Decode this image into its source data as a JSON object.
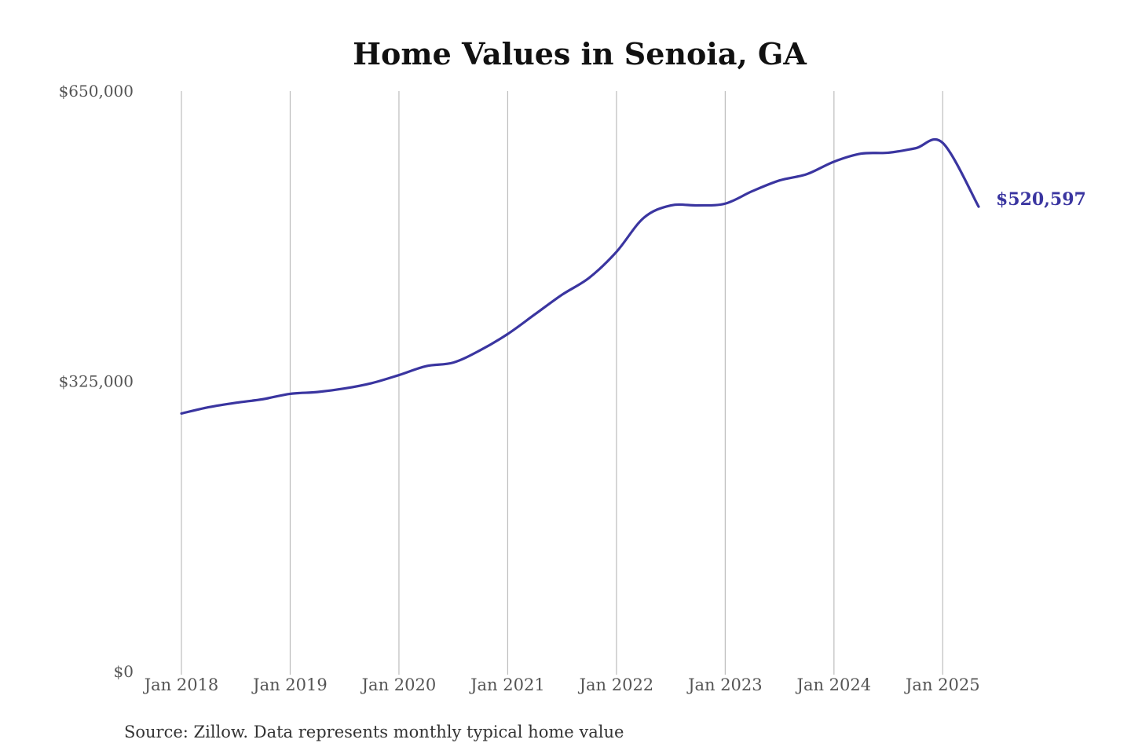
{
  "chart_data": {
    "type": "line",
    "title": "Home Values in Senoia, GA",
    "xlabel": "",
    "ylabel": "",
    "ylim": [
      0,
      650000
    ],
    "yticks": [
      {
        "value": 0,
        "label": "$0"
      },
      {
        "value": 325000,
        "label": "$325,000"
      },
      {
        "value": 650000,
        "label": "$650,000"
      }
    ],
    "xticks": [
      {
        "value": 2018,
        "label": "Jan 2018"
      },
      {
        "value": 2019,
        "label": "Jan 2019"
      },
      {
        "value": 2020,
        "label": "Jan 2020"
      },
      {
        "value": 2021,
        "label": "Jan 2021"
      },
      {
        "value": 2022,
        "label": "Jan 2022"
      },
      {
        "value": 2023,
        "label": "Jan 2023"
      },
      {
        "value": 2024,
        "label": "Jan 2024"
      },
      {
        "value": 2025,
        "label": "Jan 2025"
      }
    ],
    "xlim": [
      2018,
      2025.33
    ],
    "grid": "vertical",
    "series": [
      {
        "color": "#3a35a0",
        "end_label": "$520,597",
        "x": [
          2018.0,
          2018.25,
          2018.5,
          2018.75,
          2019.0,
          2019.25,
          2019.5,
          2019.75,
          2020.0,
          2020.25,
          2020.5,
          2020.75,
          2021.0,
          2021.25,
          2021.5,
          2021.75,
          2022.0,
          2022.25,
          2022.5,
          2022.75,
          2023.0,
          2023.25,
          2023.5,
          2023.75,
          2024.0,
          2024.25,
          2024.5,
          2024.75,
          2025.0,
          2025.33
        ],
        "y": [
          289000,
          296000,
          301000,
          305000,
          311000,
          313000,
          317000,
          323000,
          332000,
          342000,
          346000,
          360000,
          378000,
          400000,
          422000,
          441000,
          470000,
          508000,
          522000,
          522000,
          524000,
          538000,
          550000,
          557000,
          571000,
          580000,
          581000,
          586000,
          592000,
          520597
        ]
      }
    ],
    "source": "Source: Zillow. Data represents monthly typical home value"
  }
}
